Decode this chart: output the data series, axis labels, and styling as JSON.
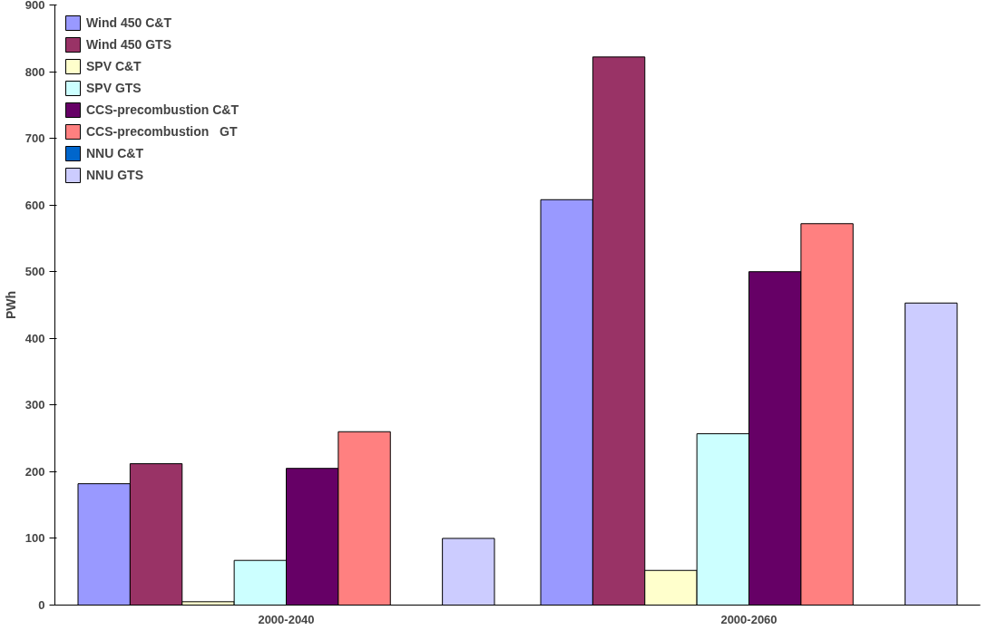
{
  "chart_data": {
    "type": "bar",
    "ylabel": "PWh",
    "categories": [
      "2000-2040",
      "2000-2060"
    ],
    "series": [
      {
        "name": "Wind 450 C&T",
        "color": "#9999ff",
        "values": [
          182,
          608
        ]
      },
      {
        "name": "Wind 450 GTS",
        "color": "#993366",
        "values": [
          212,
          822
        ]
      },
      {
        "name": "SPV C&T",
        "color": "#ffffcc",
        "values": [
          5,
          52
        ]
      },
      {
        "name": "SPV GTS",
        "color": "#ccffff",
        "values": [
          67,
          257
        ]
      },
      {
        "name": "CCS-precombustion C&T",
        "color": "#660066",
        "values": [
          205,
          500
        ]
      },
      {
        "name": "CCS-precombustion   GT",
        "color": "#ff8080",
        "values": [
          260,
          572
        ]
      },
      {
        "name": "NNU C&T",
        "color": "#0066cc",
        "values": [
          null,
          null
        ]
      },
      {
        "name": "NNU GTS",
        "color": "#ccccff",
        "values": [
          100,
          453
        ]
      }
    ],
    "ylim": [
      0,
      900
    ],
    "yticks": [
      0,
      100,
      200,
      300,
      400,
      500,
      600,
      700,
      800,
      900
    ],
    "grid": false,
    "legend": "top left"
  }
}
